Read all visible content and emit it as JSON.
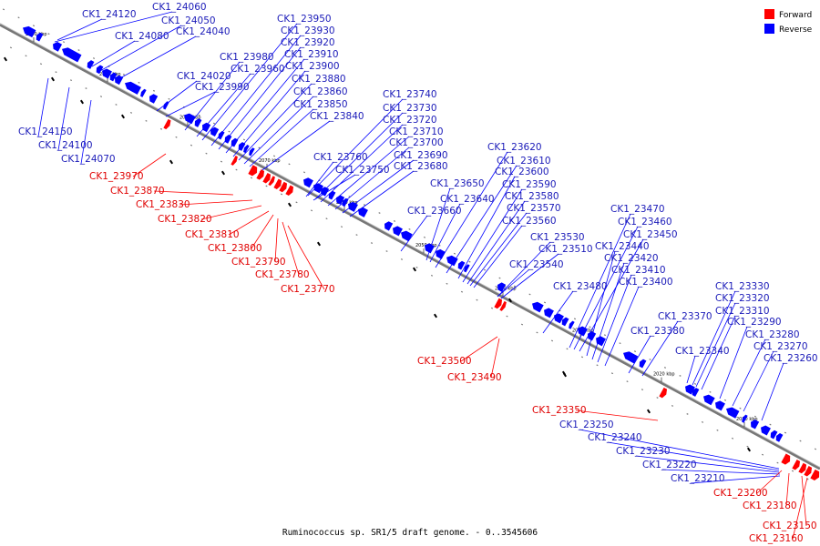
{
  "colors": {
    "forward": "#ff0000",
    "reverse": "#0000ff",
    "backbone": "#888888",
    "text_forward": "#e00000",
    "text_reverse": "#1a1ab8"
  },
  "legend": {
    "forward": "Forward",
    "reverse": "Reverse"
  },
  "caption": "Ruminococcus sp. SR1/5 draft genome. - 0..3545606",
  "ticks": [
    "2100 kbp",
    "2090 kbp",
    "2080 kbp",
    "2070 kbp",
    "2060 kbp",
    "2050 kbp",
    "2040 kbp",
    "2030 kbp",
    "2020 kbp",
    "2010 kbp"
  ],
  "reverse_labels": [
    "CK1_24120",
    "CK1_24060",
    "CK1_24050",
    "CK1_24080",
    "CK1_24040",
    "CK1_24020",
    "CK1_23990",
    "CK1_23980",
    "CK1_23960",
    "CK1_23950",
    "CK1_23930",
    "CK1_23920",
    "CK1_23910",
    "CK1_23900",
    "CK1_23880",
    "CK1_23860",
    "CK1_23850",
    "CK1_23840",
    "CK1_24150",
    "CK1_24100",
    "CK1_24070",
    "CK1_23740",
    "CK1_23730",
    "CK1_23720",
    "CK1_23710",
    "CK1_23700",
    "CK1_23690",
    "CK1_23680",
    "CK1_23760",
    "CK1_23750",
    "CK1_23620",
    "CK1_23610",
    "CK1_23600",
    "CK1_23590",
    "CK1_23580",
    "CK1_23570",
    "CK1_23560",
    "CK1_23650",
    "CK1_23640",
    "CK1_23660",
    "CK1_23530",
    "CK1_23510",
    "CK1_23540",
    "CK1_23470",
    "CK1_23460",
    "CK1_23450",
    "CK1_23440",
    "CK1_23420",
    "CK1_23410",
    "CK1_23400",
    "CK1_23480",
    "CK1_23370",
    "CK1_23380",
    "CK1_23340",
    "CK1_23330",
    "CK1_23320",
    "CK1_23310",
    "CK1_23290",
    "CK1_23280",
    "CK1_23270",
    "CK1_23260",
    "CK1_23250",
    "CK1_23240",
    "CK1_23230",
    "CK1_23220",
    "CK1_23210"
  ],
  "forward_labels": [
    "CK1_23970",
    "CK1_23870",
    "CK1_23830",
    "CK1_23820",
    "CK1_23810",
    "CK1_23800",
    "CK1_23790",
    "CK1_23780",
    "CK1_23770",
    "CK1_23500",
    "CK1_23490",
    "CK1_23350",
    "CK1_23200",
    "CK1_23180",
    "CK1_23150",
    "CK1_23160"
  ]
}
